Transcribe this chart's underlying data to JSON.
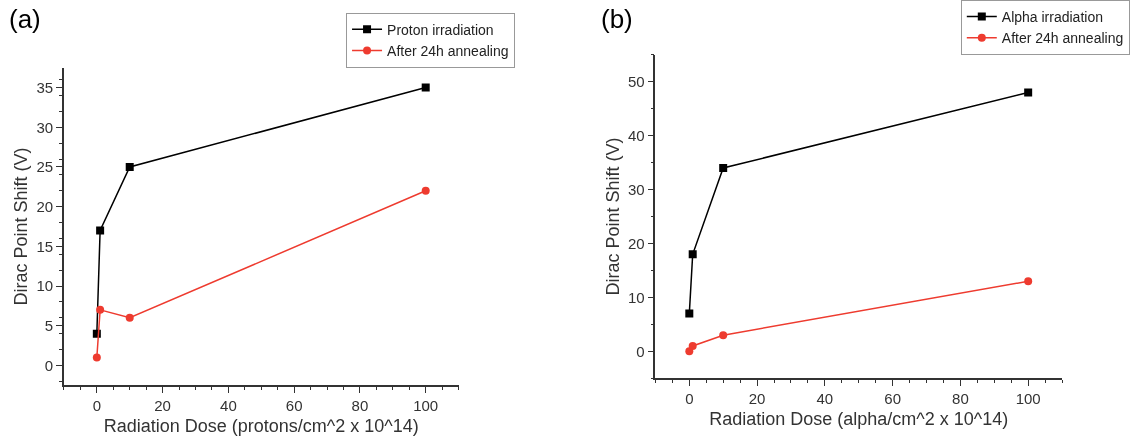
{
  "chart_data": [
    {
      "type": "line",
      "title": "(a)",
      "xlabel": "Radiation Dose (protons/cm^2 x 10^14)",
      "ylabel": "Dirac Point Shift (V)",
      "x": [
        0,
        1,
        10,
        100
      ],
      "series": [
        {
          "name": "Proton irradiation",
          "color": "#000000",
          "marker": "square",
          "values": [
            4,
            17,
            25,
            35
          ]
        },
        {
          "name": "After 24h annealing",
          "color": "#ee3b2f",
          "marker": "circle",
          "values": [
            1,
            7,
            6,
            22
          ]
        }
      ],
      "xlim": [
        -10,
        110
      ],
      "xticks": [
        0,
        20,
        40,
        60,
        80,
        100
      ],
      "ylim": [
        -2.5,
        37.5
      ],
      "yticks": [
        0,
        5,
        10,
        15,
        20,
        25,
        30,
        35
      ],
      "legend": "top right",
      "line_style": "solid"
    },
    {
      "type": "line",
      "title": "(b)",
      "xlabel": "Radiation Dose (alpha/cm^2 x 10^14)",
      "ylabel": "Dirac Point Shift (V)",
      "x": [
        0,
        1,
        10,
        100
      ],
      "series": [
        {
          "name": "Alpha irradiation",
          "color": "#000000",
          "marker": "square",
          "values": [
            7,
            18,
            34,
            48
          ]
        },
        {
          "name": "After 24h annealing",
          "color": "#ee3b2f",
          "marker": "circle",
          "values": [
            0,
            1,
            3,
            13
          ]
        }
      ],
      "xlim": [
        -10,
        110
      ],
      "xticks": [
        0,
        20,
        40,
        60,
        80,
        100
      ],
      "ylim": [
        -5,
        55
      ],
      "yticks": [
        0,
        10,
        20,
        30,
        40,
        50
      ],
      "legend": "top right",
      "line_style": "solid"
    }
  ]
}
